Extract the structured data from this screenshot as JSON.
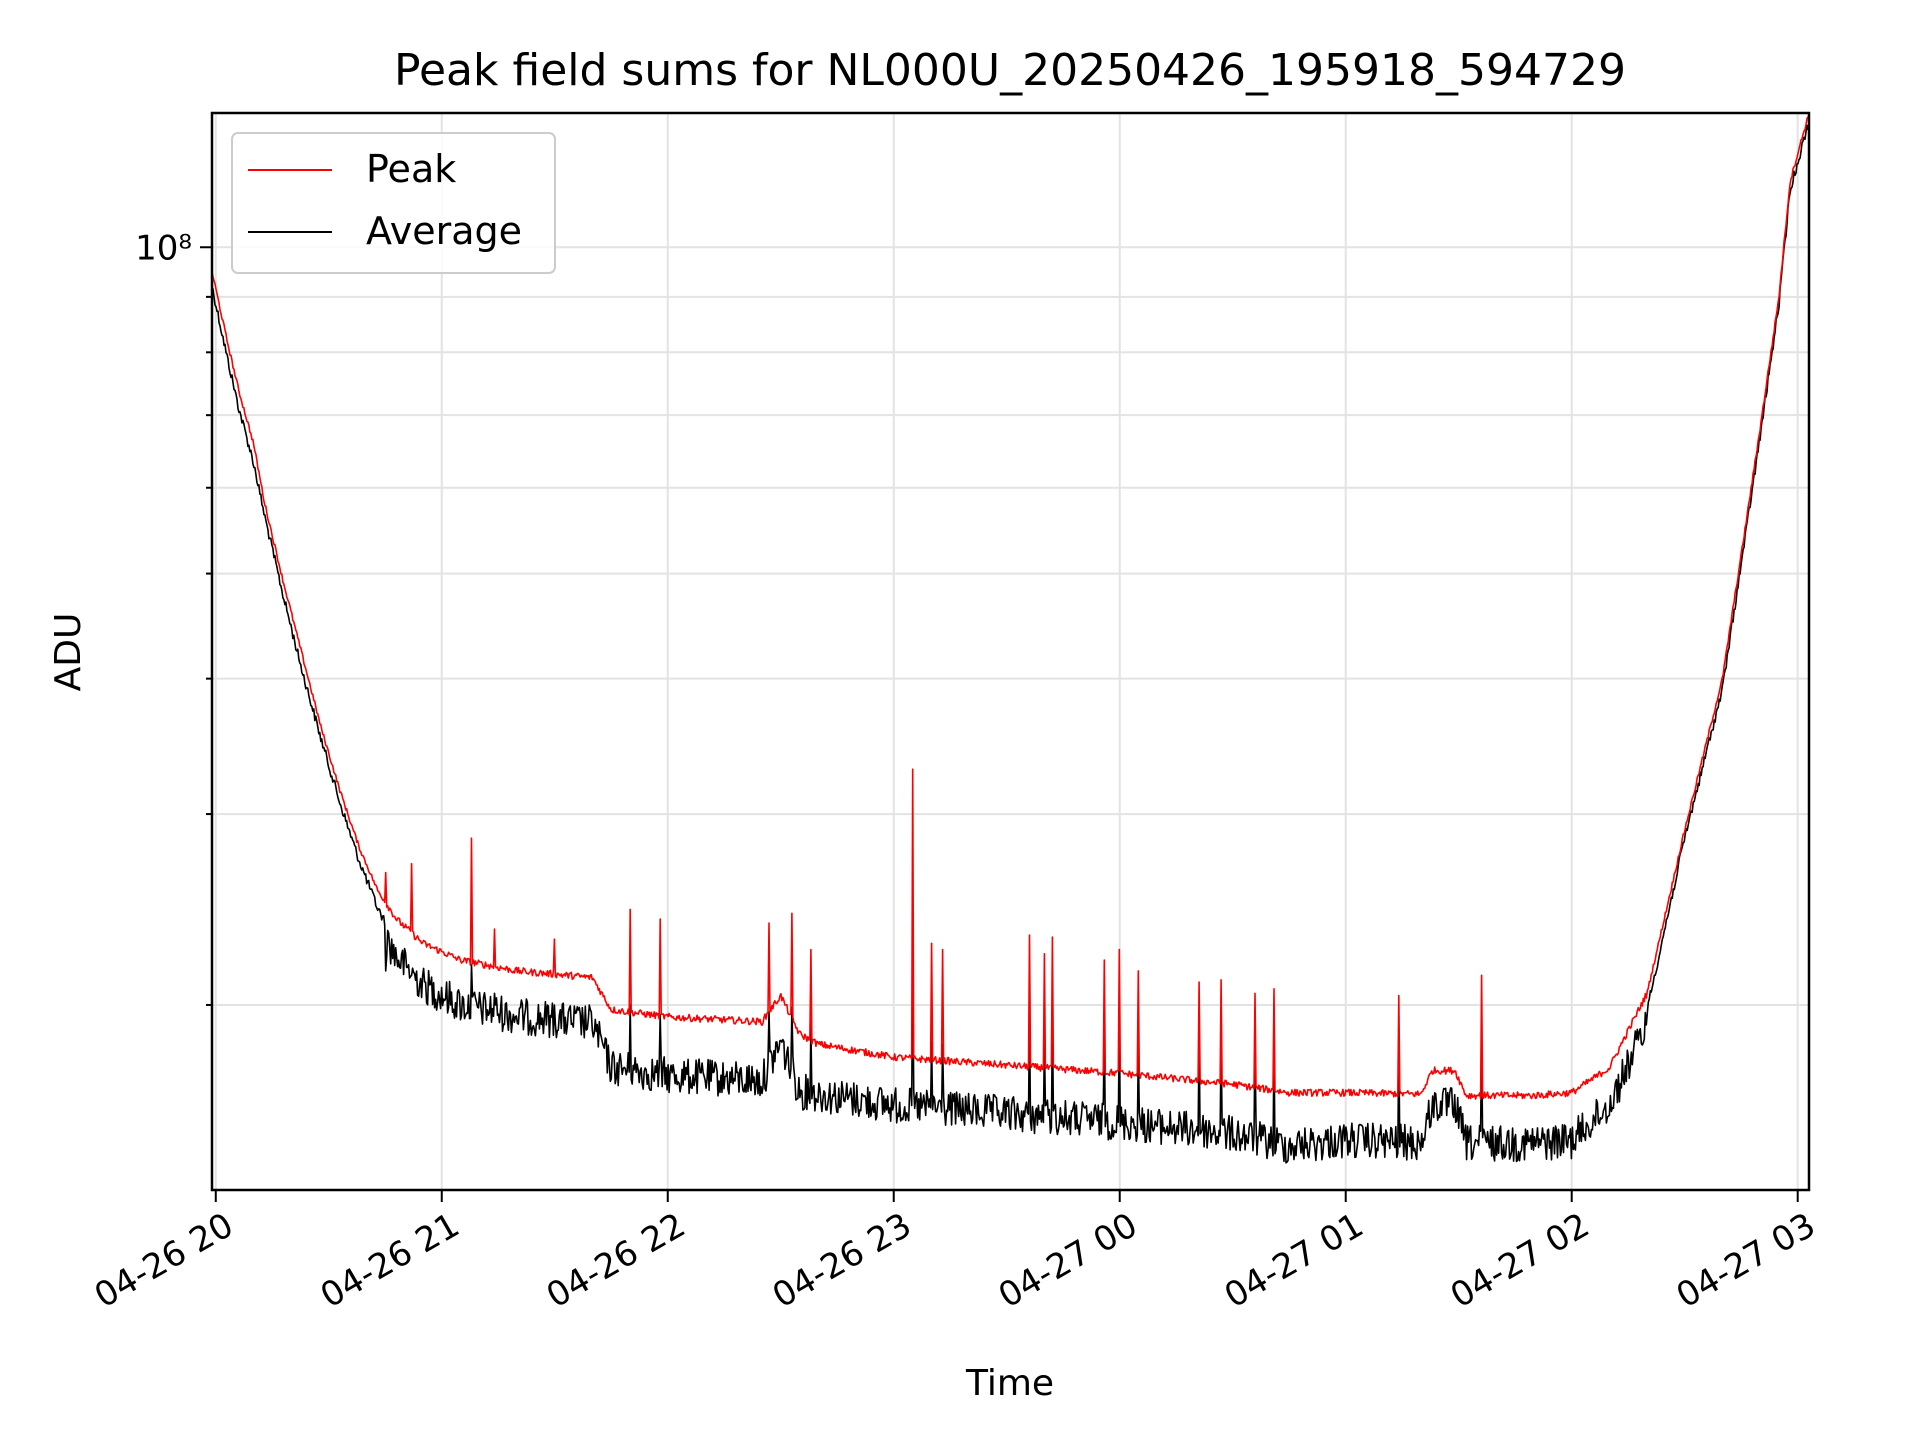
{
  "chart_data": {
    "type": "line",
    "title": "Peak field sums for NL000U_20250426_195918_594729",
    "xlabel": "Time",
    "ylabel": "ADU",
    "y_scale": "log",
    "ylim": [
      13500000,
      133000000
    ],
    "xlim": [
      "2025-04-26 19:59",
      "2025-04-27 03:03"
    ],
    "grid": true,
    "legend_placement": "top-left",
    "x_ticks": [
      {
        "t": "2025-04-26 20:00",
        "label": "04-26 20"
      },
      {
        "t": "2025-04-26 21:00",
        "label": "04-26 21"
      },
      {
        "t": "2025-04-26 22:00",
        "label": "04-26 22"
      },
      {
        "t": "2025-04-26 23:00",
        "label": "04-26 23"
      },
      {
        "t": "2025-04-27 00:00",
        "label": "04-27 00"
      },
      {
        "t": "2025-04-27 01:00",
        "label": "04-27 01"
      },
      {
        "t": "2025-04-27 02:00",
        "label": "04-27 02"
      },
      {
        "t": "2025-04-27 03:00",
        "label": "04-27 03"
      }
    ],
    "y_ticks": [
      {
        "value": 100000000,
        "label": "10⁸"
      }
    ],
    "series": [
      {
        "name": "Peak",
        "color": "#ff0000",
        "x": [
          "2025-04-26 19:59",
          "2025-04-26 20:03",
          "2025-04-26 20:06",
          "2025-04-26 20:10",
          "2025-04-26 20:13",
          "2025-04-26 20:18",
          "2025-04-26 20:23",
          "2025-04-26 20:28",
          "2025-04-26 20:33",
          "2025-04-26 20:38",
          "2025-04-26 20:43",
          "2025-04-26 20:48",
          "2025-04-26 20:55",
          "2025-04-26 21:05",
          "2025-04-26 21:20",
          "2025-04-26 21:40",
          "2025-04-26 21:45",
          "2025-04-26 22:00",
          "2025-04-26 22:25",
          "2025-04-26 22:30",
          "2025-04-26 22:35",
          "2025-04-26 22:40",
          "2025-04-26 23:00",
          "2025-04-26 23:30",
          "2025-04-27 00:00",
          "2025-04-27 00:30",
          "2025-04-27 00:45",
          "2025-04-27 01:00",
          "2025-04-27 01:20",
          "2025-04-27 01:23",
          "2025-04-27 01:29",
          "2025-04-27 01:32",
          "2025-04-27 01:50",
          "2025-04-27 02:00",
          "2025-04-27 02:10",
          "2025-04-27 02:20",
          "2025-04-27 02:30",
          "2025-04-27 02:40",
          "2025-04-27 02:45",
          "2025-04-27 02:50",
          "2025-04-27 02:55",
          "2025-04-27 02:58",
          "2025-04-27 03:00",
          "2025-04-27 03:03"
        ],
        "y": [
          95000000,
          82000000,
          74000000,
          66000000,
          58000000,
          49000000,
          42000000,
          36000000,
          31500000,
          28000000,
          25500000,
          24000000,
          22800000,
          22000000,
          21500000,
          21200000,
          19800000,
          19500000,
          19300000,
          20400000,
          18800000,
          18400000,
          17900000,
          17600000,
          17300000,
          16900000,
          16600000,
          16600000,
          16550000,
          17400000,
          17400000,
          16500000,
          16500000,
          16600000,
          17500000,
          20500000,
          29000000,
          40000000,
          52000000,
          68000000,
          90000000,
          115000000,
          122000000,
          133000000
        ]
      },
      {
        "name": "Average",
        "color": "#000000",
        "x": [
          "2025-04-26 19:59",
          "2025-04-26 20:03",
          "2025-04-26 20:06",
          "2025-04-26 20:10",
          "2025-04-26 20:13",
          "2025-04-26 20:18",
          "2025-04-26 20:23",
          "2025-04-26 20:28",
          "2025-04-26 20:33",
          "2025-04-26 20:38",
          "2025-04-26 20:43",
          "2025-04-26 20:48",
          "2025-04-26 20:55",
          "2025-04-26 21:05",
          "2025-04-26 21:20",
          "2025-04-26 21:40",
          "2025-04-26 21:45",
          "2025-04-26 22:00",
          "2025-04-26 22:25",
          "2025-04-26 22:30",
          "2025-04-26 22:35",
          "2025-04-26 22:40",
          "2025-04-26 23:00",
          "2025-04-26 23:30",
          "2025-04-27 00:00",
          "2025-04-27 00:30",
          "2025-04-27 00:45",
          "2025-04-27 01:00",
          "2025-04-27 01:20",
          "2025-04-27 01:23",
          "2025-04-27 01:29",
          "2025-04-27 01:32",
          "2025-04-27 01:50",
          "2025-04-27 02:00",
          "2025-04-27 02:10",
          "2025-04-27 02:20",
          "2025-04-27 02:30",
          "2025-04-27 02:40",
          "2025-04-27 02:45",
          "2025-04-27 02:50",
          "2025-04-27 02:55",
          "2025-04-27 02:58",
          "2025-04-27 03:00",
          "2025-04-27 03:03"
        ],
        "y": [
          93000000,
          80000000,
          72000000,
          64000000,
          57000000,
          48000000,
          41000000,
          35500000,
          31000000,
          27500000,
          24800000,
          23000000,
          21700000,
          20800000,
          20300000,
          20000000,
          18200000,
          17900000,
          17700000,
          19200000,
          17300000,
          17200000,
          16800000,
          16500000,
          16200000,
          15800000,
          15400000,
          15600000,
          15500000,
          16800000,
          16800000,
          15500000,
          15500000,
          15600000,
          16800000,
          20000000,
          28800000,
          39500000,
          51500000,
          67500000,
          89500000,
          114000000,
          121000000,
          132000000
        ]
      }
    ],
    "annotations": {
      "spike_x": [
        "2025-04-26 20:45",
        "2025-04-26 20:52",
        "2025-04-26 21:08",
        "2025-04-26 21:14",
        "2025-04-26 21:30",
        "2025-04-26 21:50",
        "2025-04-26 21:58",
        "2025-04-26 22:27",
        "2025-04-26 22:33",
        "2025-04-26 22:38",
        "2025-04-26 23:05",
        "2025-04-26 23:10",
        "2025-04-26 23:13",
        "2025-04-26 23:36",
        "2025-04-26 23:40",
        "2025-04-26 23:42",
        "2025-04-26 23:56",
        "2025-04-27 00:00",
        "2025-04-27 00:05",
        "2025-04-27 00:21",
        "2025-04-27 00:27",
        "2025-04-27 00:36",
        "2025-04-27 00:41",
        "2025-04-27 01:14",
        "2025-04-27 01:36"
      ],
      "peak_spike_y": [
        26500000,
        27000000,
        28500000,
        23500000,
        23000000,
        24500000,
        24000000,
        23800000,
        24300000,
        22500000,
        33000000,
        22800000,
        22500000,
        23200000,
        22300000,
        23100000,
        22000000,
        22500000,
        21500000,
        21000000,
        21100000,
        20500000,
        20700000,
        20400000,
        21300000
      ],
      "avg_spike_y": [
        21500000,
        21300000,
        21800000,
        20500000,
        20000000,
        20000000,
        19600000,
        19700000,
        19900000,
        19200000,
        22500000,
        18500000,
        18400000,
        19600000,
        18500000,
        19400000,
        19000000,
        19300000,
        18200000,
        18800000,
        18700000,
        18500000,
        18600000,
        18600000,
        18700000
      ]
    }
  }
}
